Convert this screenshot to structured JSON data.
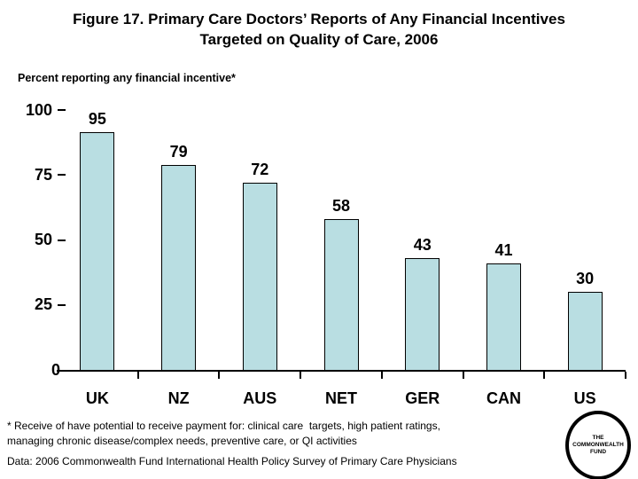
{
  "slide": {
    "title": "Figure 17. Primary Care Doctors’ Reports of Any Financial Incentives\nTargeted on Quality of Care, 2006"
  },
  "chart_data": {
    "type": "bar",
    "title": "Figure 17. Primary Care Doctors’ Reports of Any Financial Incentives Targeted on Quality of Care, 2006",
    "subtitle": "Percent reporting any financial incentive*",
    "categories": [
      "UK",
      "NZ",
      "AUS",
      "NET",
      "GER",
      "CAN",
      "US"
    ],
    "values": [
      95,
      79,
      72,
      58,
      43,
      41,
      30
    ],
    "ylim": [
      0,
      100
    ],
    "yticks": [
      100,
      75,
      50,
      25,
      0
    ],
    "grid": false,
    "legend_position": "none",
    "bar_color": "#b9dee2",
    "bar_border_color": "#000000"
  },
  "footnotes": {
    "note": "* Receive of have potential to receive payment for: clinical care  targets, high patient ratings,\nmanaging chronic disease/complex needs, preventive care, or QI activities",
    "source": "Data: 2006 Commonwealth Fund International Health Policy Survey of Primary Care Physicians"
  },
  "logo": {
    "line1": "THE",
    "line2": "COMMONWEALTH",
    "line3": "FUND"
  }
}
